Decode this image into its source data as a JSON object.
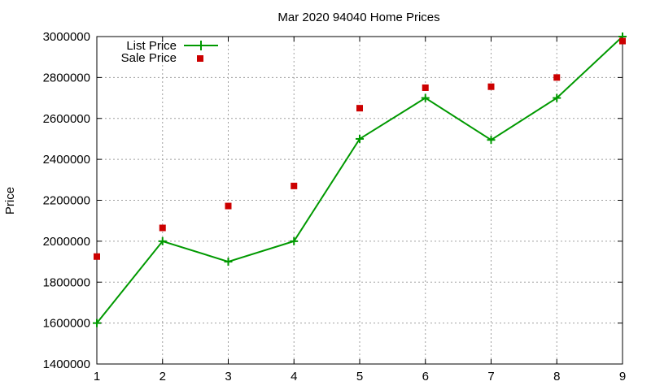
{
  "chart_data": {
    "type": "line",
    "title": "Mar 2020 94040 Home Prices",
    "xlabel": "",
    "ylabel": "Price",
    "xlim": [
      1,
      9
    ],
    "ylim": [
      1400000,
      3000000
    ],
    "x_ticks": [
      "1",
      "2",
      "3",
      "4",
      "5",
      "6",
      "7",
      "8",
      "9"
    ],
    "y_ticks": [
      "1400000",
      "1600000",
      "1800000",
      "2000000",
      "2200000",
      "2400000",
      "2600000",
      "2800000",
      "3000000"
    ],
    "grid": true,
    "legend_position": "top-left",
    "x": [
      1,
      2,
      3,
      4,
      5,
      6,
      7,
      8,
      9
    ],
    "series": [
      {
        "name": "List Price",
        "style": "line-plus",
        "color": "#009900",
        "values": [
          1600000,
          2000000,
          1900000,
          2000000,
          2500000,
          2700000,
          2495000,
          2700000,
          3000000
        ]
      },
      {
        "name": "Sale Price",
        "style": "square-points",
        "color": "#cc0000",
        "values": [
          1925000,
          2065000,
          2172000,
          2270000,
          2650000,
          2750000,
          2755000,
          2800000,
          2978000
        ]
      }
    ]
  }
}
